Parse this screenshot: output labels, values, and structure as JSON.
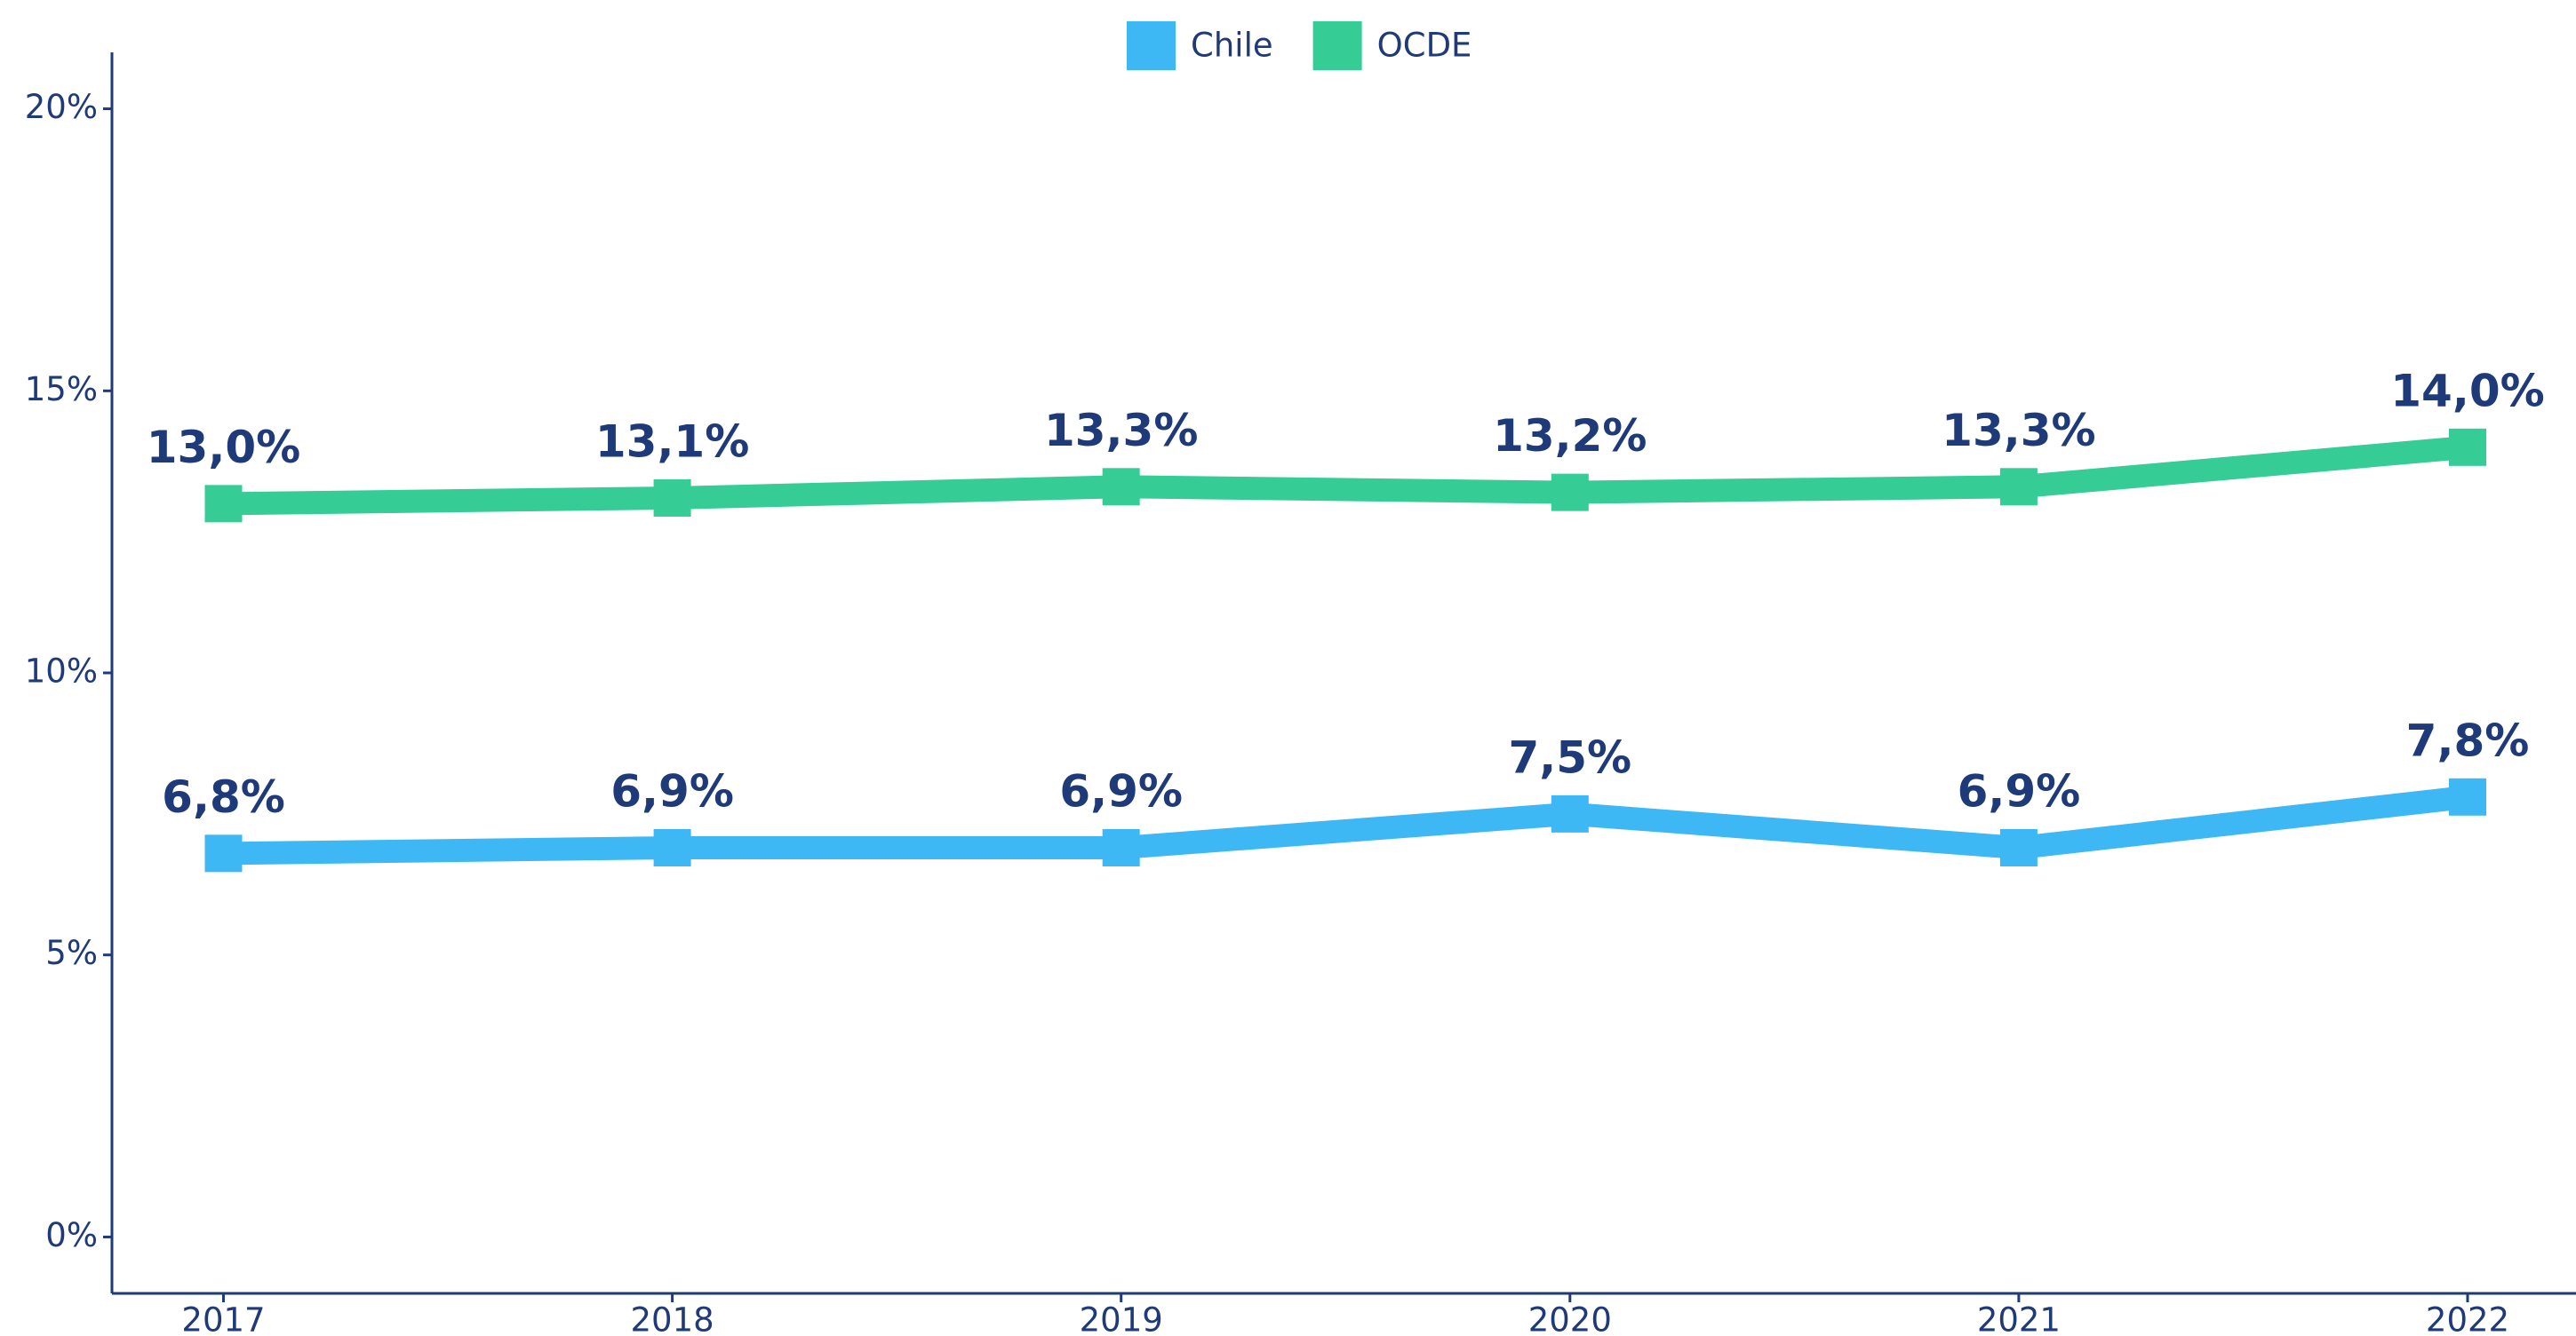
{
  "chart_data": {
    "type": "line",
    "categories": [
      "2017",
      "2018",
      "2019",
      "2020",
      "2021",
      "2022"
    ],
    "series": [
      {
        "name": "Chile",
        "color": "#3db8f5",
        "values": [
          6.8,
          6.9,
          6.9,
          7.5,
          6.9,
          7.8
        ],
        "value_labels": [
          "6,8%",
          "6,9%",
          "6,9%",
          "7,5%",
          "6,9%",
          "7,8%"
        ]
      },
      {
        "name": "OCDE",
        "color": "#35cc96",
        "values": [
          13.0,
          13.1,
          13.3,
          13.2,
          13.3,
          14.0
        ],
        "value_labels": [
          "13,0%",
          "13,1%",
          "13,3%",
          "13,2%",
          "13,3%",
          "14,0%"
        ]
      }
    ],
    "ylim": [
      -1,
      21
    ],
    "yticks": [
      {
        "value": 0,
        "label": "0%"
      },
      {
        "value": 5,
        "label": "5%"
      },
      {
        "value": 10,
        "label": "10%"
      },
      {
        "value": 15,
        "label": "15%"
      },
      {
        "value": 20,
        "label": "20%"
      }
    ],
    "legend": "top",
    "grid": false
  }
}
